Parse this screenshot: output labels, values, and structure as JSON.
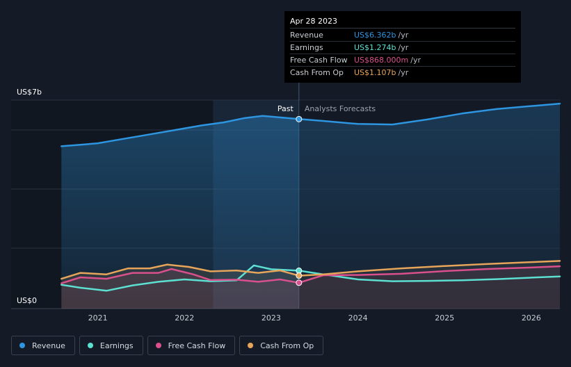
{
  "chart_data": {
    "type": "line",
    "y_axis": {
      "min": 0,
      "max": 7,
      "top_label": "US$7b",
      "bottom_label": "US$0"
    },
    "x_range": [
      2020.58,
      2026.33
    ],
    "x_ticks": [
      "2021",
      "2022",
      "2023",
      "2024",
      "2025",
      "2026"
    ],
    "divider_x": 2023.32,
    "past_label": "Past",
    "forecast_label": "Analysts Forecasts",
    "series": [
      {
        "name": "Revenue",
        "color": "#2e95e0",
        "area": true,
        "points": [
          [
            2020.58,
            5.45
          ],
          [
            2020.8,
            5.5
          ],
          [
            2021.0,
            5.55
          ],
          [
            2021.3,
            5.7
          ],
          [
            2021.6,
            5.85
          ],
          [
            2021.9,
            6.0
          ],
          [
            2022.2,
            6.15
          ],
          [
            2022.45,
            6.25
          ],
          [
            2022.7,
            6.4
          ],
          [
            2022.9,
            6.47
          ],
          [
            2023.1,
            6.42
          ],
          [
            2023.32,
            6.362
          ],
          [
            2023.6,
            6.3
          ],
          [
            2024.0,
            6.2
          ],
          [
            2024.4,
            6.18
          ],
          [
            2024.8,
            6.35
          ],
          [
            2025.2,
            6.55
          ],
          [
            2025.6,
            6.7
          ],
          [
            2026.0,
            6.8
          ],
          [
            2026.33,
            6.88
          ]
        ]
      },
      {
        "name": "Earnings",
        "color": "#5ce0d2",
        "area": false,
        "points": [
          [
            2020.58,
            0.8
          ],
          [
            2020.8,
            0.7
          ],
          [
            2021.1,
            0.6
          ],
          [
            2021.4,
            0.78
          ],
          [
            2021.7,
            0.9
          ],
          [
            2022.0,
            0.98
          ],
          [
            2022.3,
            0.92
          ],
          [
            2022.6,
            0.95
          ],
          [
            2022.8,
            1.45
          ],
          [
            2023.0,
            1.32
          ],
          [
            2023.32,
            1.274
          ],
          [
            2023.6,
            1.15
          ],
          [
            2024.0,
            0.98
          ],
          [
            2024.4,
            0.92
          ],
          [
            2024.8,
            0.93
          ],
          [
            2025.2,
            0.95
          ],
          [
            2025.6,
            0.99
          ],
          [
            2026.0,
            1.04
          ],
          [
            2026.33,
            1.08
          ]
        ]
      },
      {
        "name": "Free Cash Flow",
        "color": "#d9508c",
        "area": true,
        "points": [
          [
            2020.58,
            0.85
          ],
          [
            2020.8,
            1.05
          ],
          [
            2021.1,
            1.0
          ],
          [
            2021.4,
            1.2
          ],
          [
            2021.7,
            1.2
          ],
          [
            2021.85,
            1.33
          ],
          [
            2022.1,
            1.15
          ],
          [
            2022.3,
            0.96
          ],
          [
            2022.6,
            0.97
          ],
          [
            2022.85,
            0.9
          ],
          [
            2023.1,
            0.98
          ],
          [
            2023.32,
            0.868
          ],
          [
            2023.6,
            1.12
          ],
          [
            2024.0,
            1.13
          ],
          [
            2024.5,
            1.17
          ],
          [
            2025.0,
            1.26
          ],
          [
            2025.5,
            1.33
          ],
          [
            2026.0,
            1.38
          ],
          [
            2026.33,
            1.42
          ]
        ]
      },
      {
        "name": "Cash From Op",
        "color": "#e6a55a",
        "area": true,
        "points": [
          [
            2020.58,
            1.0
          ],
          [
            2020.8,
            1.2
          ],
          [
            2021.1,
            1.15
          ],
          [
            2021.35,
            1.35
          ],
          [
            2021.6,
            1.35
          ],
          [
            2021.8,
            1.48
          ],
          [
            2022.05,
            1.4
          ],
          [
            2022.3,
            1.25
          ],
          [
            2022.6,
            1.28
          ],
          [
            2022.85,
            1.2
          ],
          [
            2023.1,
            1.28
          ],
          [
            2023.32,
            1.107
          ],
          [
            2023.6,
            1.15
          ],
          [
            2024.0,
            1.25
          ],
          [
            2024.5,
            1.35
          ],
          [
            2025.0,
            1.43
          ],
          [
            2025.5,
            1.5
          ],
          [
            2026.0,
            1.56
          ],
          [
            2026.33,
            1.6
          ]
        ]
      }
    ]
  },
  "tooltip": {
    "date": "Apr 28 2023",
    "rows": [
      {
        "label": "Revenue",
        "value": "US$6.362b",
        "unit": "/yr",
        "color": "#2e95e0"
      },
      {
        "label": "Earnings",
        "value": "US$1.274b",
        "unit": "/yr",
        "color": "#5ce0d2"
      },
      {
        "label": "Free Cash Flow",
        "value": "US$868.000m",
        "unit": "/yr",
        "color": "#d9508c"
      },
      {
        "label": "Cash From Op",
        "value": "US$1.107b",
        "unit": "/yr",
        "color": "#e6a55a"
      }
    ]
  },
  "legend": [
    {
      "label": "Revenue",
      "color": "#2e95e0"
    },
    {
      "label": "Earnings",
      "color": "#5ce0d2"
    },
    {
      "label": "Free Cash Flow",
      "color": "#d9508c"
    },
    {
      "label": "Cash From Op",
      "color": "#e6a55a"
    }
  ]
}
